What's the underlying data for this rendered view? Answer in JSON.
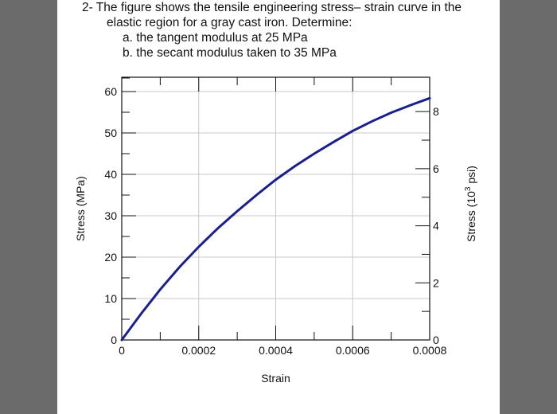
{
  "question": {
    "line1": "2- The figure shows the tensile engineering stress– strain curve in the",
    "line2": "elastic region for a gray cast iron. Determine:",
    "item_a": "a. the tangent modulus at 25 MPa",
    "item_b": "b. the secant modulus taken to 35 MPa"
  },
  "colors": {
    "curve": "#1a1f8f",
    "side_panels": "#6b6b6b",
    "grid": "#c8c8c8"
  },
  "chart_data": {
    "type": "line",
    "title": "",
    "xlabel": "Strain",
    "ylabel": "Stress (MPa)",
    "y2label_prefix": "Stress (10",
    "y2label_sup": "3",
    "y2label_suffix": " psi)",
    "xlim": [
      0,
      0.0008
    ],
    "ylim": [
      0,
      60
    ],
    "y2lim": [
      0,
      8.7
    ],
    "grid": true,
    "x_ticks": [
      {
        "value": 0,
        "label": "0"
      },
      {
        "value": 0.0002,
        "label": "0.0002"
      },
      {
        "value": 0.0004,
        "label": "0.0004"
      },
      {
        "value": 0.0006,
        "label": "0.0006"
      },
      {
        "value": 0.0008,
        "label": "0.0008"
      }
    ],
    "y_ticks": [
      {
        "value": 0,
        "label": "0"
      },
      {
        "value": 10,
        "label": "10"
      },
      {
        "value": 20,
        "label": "20"
      },
      {
        "value": 30,
        "label": "30"
      },
      {
        "value": 40,
        "label": "40"
      },
      {
        "value": 50,
        "label": "50"
      },
      {
        "value": 60,
        "label": "60"
      }
    ],
    "y2_ticks": [
      {
        "value": 0,
        "label": "0"
      },
      {
        "value": 2,
        "label": "2"
      },
      {
        "value": 4,
        "label": "4"
      },
      {
        "value": 6,
        "label": "6"
      },
      {
        "value": 8,
        "label": "8"
      }
    ],
    "series": [
      {
        "x": [
          0,
          5e-05,
          0.0001,
          0.00015,
          0.0002,
          0.00025,
          0.0003,
          0.00035,
          0.0004,
          0.00045,
          0.0005,
          0.00055,
          0.0006,
          0.00065,
          0.0007,
          0.00075,
          0.0008
        ],
        "y": [
          0,
          6.3,
          12.2,
          17.6,
          22.5,
          27.0,
          31.1,
          35.0,
          38.7,
          42.0,
          45.0,
          47.8,
          50.5,
          52.8,
          54.9,
          56.7,
          58.4
        ]
      }
    ]
  }
}
